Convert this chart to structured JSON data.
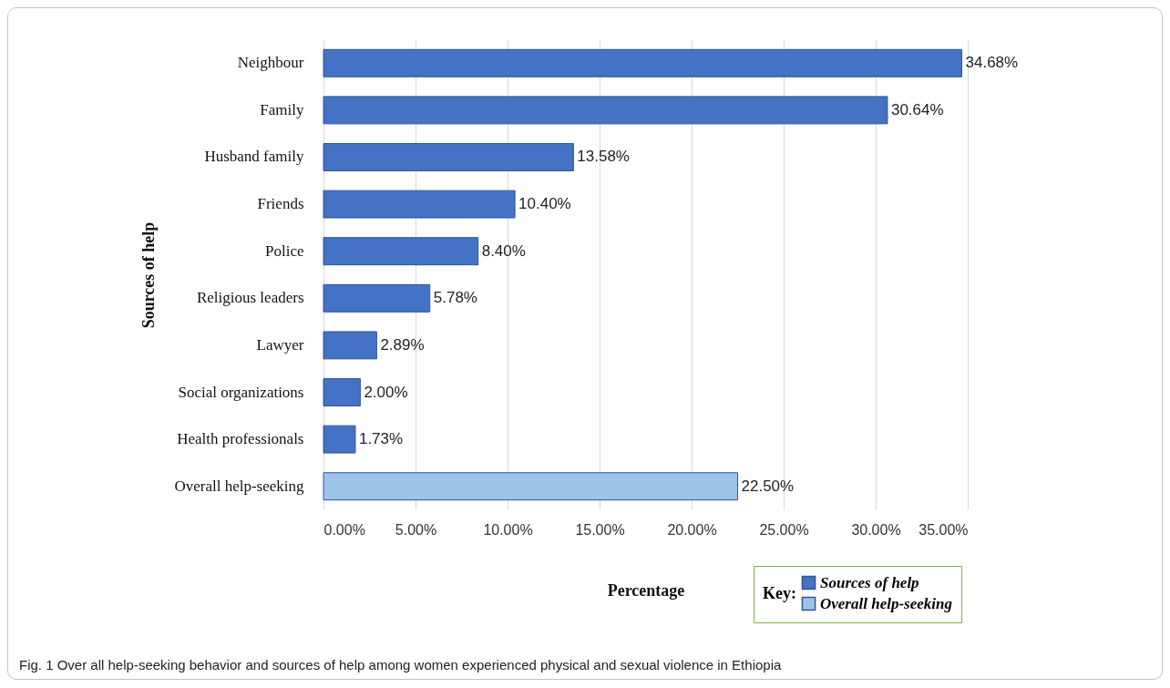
{
  "chart_data": {
    "type": "bar",
    "orientation": "horizontal",
    "xlabel": "Percentage",
    "ylabel": "Sources of help",
    "legend_title": "Key:",
    "legend": "bottom right",
    "grid": "x",
    "categories": [
      "Neighbour",
      "Family",
      "Husband family",
      "Friends",
      "Police",
      "Religious leaders",
      "Lawyer",
      "Social organizations",
      "Health professionals",
      "Overall help-seeking"
    ],
    "series": [
      {
        "name": "Sources of help",
        "color": "#4472c4",
        "values": [
          34.68,
          30.64,
          13.58,
          10.4,
          8.4,
          5.78,
          2.89,
          2.0,
          1.73,
          null
        ],
        "value_labels": [
          "34.68%",
          "30.64%",
          "13.58%",
          "10.40%",
          "8.40%",
          "5.78%",
          "2.89%",
          "2.00%",
          "1.73%",
          null
        ]
      },
      {
        "name": "Overall help-seeking",
        "color": "#9dc3e6",
        "values": [
          null,
          null,
          null,
          null,
          null,
          null,
          null,
          null,
          null,
          22.5
        ],
        "value_labels": [
          null,
          null,
          null,
          null,
          null,
          null,
          null,
          null,
          null,
          "22.50%"
        ]
      }
    ],
    "xlim": [
      0,
      35
    ],
    "xticks": [
      {
        "value": 0,
        "label": "0.00%"
      },
      {
        "value": 5,
        "label": "5.00%"
      },
      {
        "value": 10,
        "label": "10.00%"
      },
      {
        "value": 15,
        "label": "15.00%"
      },
      {
        "value": 20,
        "label": "20.00%"
      },
      {
        "value": 25,
        "label": "25.00%"
      },
      {
        "value": 30,
        "label": "30.00%"
      },
      {
        "value": 35,
        "label": "35.00%"
      }
    ],
    "annotations": [
      "Fig. 1 Over all help-seeking behavior and sources of help among women experienced physical and sexual violence in Ethiopia"
    ]
  }
}
